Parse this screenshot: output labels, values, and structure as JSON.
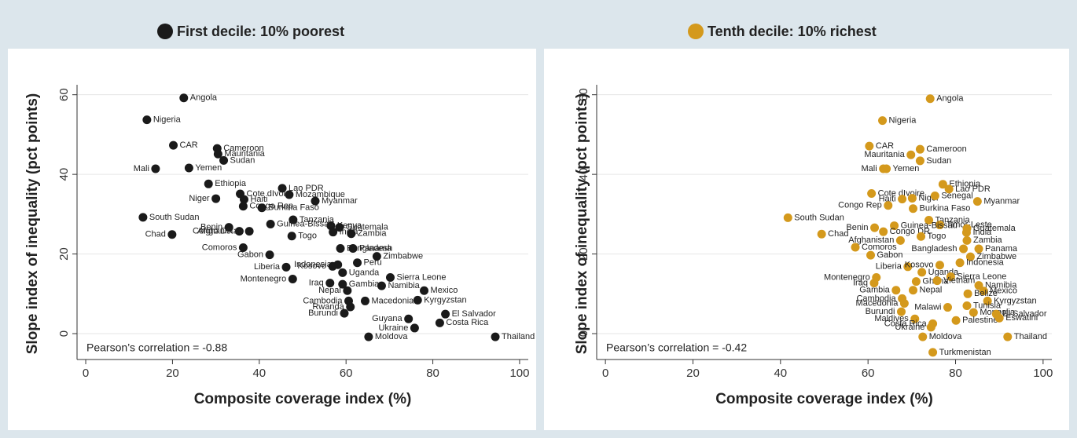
{
  "chart_data": [
    {
      "type": "scatter",
      "x_label": "Composite coverage index (%)",
      "y_label": "Slope index of inequality (pct points)",
      "annotation": "Pearson’s correlation = -0.88",
      "xlim": [
        -2,
        102
      ],
      "ylim": [
        -6.5,
        62.5
      ],
      "xticks": [
        0,
        20,
        40,
        60,
        80,
        100
      ],
      "yticks": [
        0,
        20,
        40,
        60
      ],
      "grid": true,
      "series": [
        {
          "name": "First decile: 10% poorest",
          "color": "#1a1a1a",
          "point_labels": [
            "Angola",
            "Nigeria",
            "CAR",
            "Cameroon",
            "Mauritania",
            "Sudan",
            "Mali",
            "Yemen",
            "Ethiopia",
            "Lao PDR",
            "Cote dIvoire",
            "Mozambique",
            "Niger",
            "Haiti",
            "Myanmar",
            "Congo Rep",
            "Burkina Faso",
            "South Sudan",
            "Tanzania",
            "Kenya",
            "Guatemala",
            "Benin",
            "Guinea-Bissau",
            "India",
            "Zambia",
            "Congo DR",
            "Togo",
            "Chad",
            "Afghanistan",
            "Bangladesh",
            "Comoros",
            "Panama",
            "Gabon",
            "Zimbabwe",
            "Indonesia",
            "Peru",
            "Liberia",
            "Kosovo",
            "Uganda",
            "Montenegro",
            "Sierra Leone",
            "Iraq",
            "Gambia",
            "Namibia",
            "Nepal",
            "Mexico",
            "Cambodia",
            "Kyrgyzstan",
            "Rwanda",
            "Macedonia",
            "Burundi",
            "El Salvador",
            "Guyana",
            "Costa Rica",
            "Ukraine",
            "Moldova",
            "Thailand"
          ],
          "x": [
            22.6,
            14.1,
            20.2,
            30.3,
            30.5,
            31.8,
            16.1,
            23.8,
            28.3,
            45.3,
            35.6,
            46.9,
            30.0,
            36.5,
            52.9,
            36.3,
            40.6,
            13.2,
            47.8,
            56.5,
            58.5,
            33.0,
            42.6,
            57.0,
            61.2,
            35.4,
            47.5,
            19.9,
            37.7,
            58.7,
            36.3,
            61.6,
            42.4,
            67.1,
            58.1,
            62.6,
            46.2,
            56.9,
            59.2,
            47.7,
            70.2,
            56.3,
            59.2,
            68.2,
            60.3,
            78.0,
            60.6,
            76.5,
            61.0,
            64.4,
            59.6,
            82.9,
            74.4,
            81.6,
            75.8,
            65.2,
            94.4
          ],
          "values": [
            59.2,
            53.7,
            47.3,
            46.5,
            45.1,
            43.5,
            41.4,
            41.6,
            37.6,
            36.5,
            35.1,
            34.9,
            33.9,
            33.7,
            33.3,
            32.0,
            31.6,
            29.2,
            28.6,
            27.1,
            26.7,
            26.7,
            27.5,
            25.5,
            25.1,
            25.7,
            24.5,
            24.9,
            25.7,
            21.4,
            21.6,
            21.4,
            19.8,
            19.4,
            17.3,
            17.8,
            16.7,
            16.9,
            15.3,
            13.7,
            14.1,
            12.7,
            12.4,
            12.0,
            10.8,
            10.8,
            8.2,
            8.4,
            6.7,
            8.2,
            5.1,
            4.9,
            3.7,
            2.7,
            1.4,
            -0.8,
            -0.8
          ]
        }
      ]
    },
    {
      "type": "scatter",
      "x_label": "Composite coverage index (%)",
      "y_label": "Slope index of inequality (pct points)",
      "annotation": "Pearson’s correlation = -0.42",
      "xlim": [
        -2,
        102
      ],
      "ylim": [
        -6.5,
        62.5
      ],
      "xticks": [
        0,
        20,
        40,
        60,
        80,
        100
      ],
      "yticks": [
        0,
        20,
        40,
        60
      ],
      "grid": true,
      "series": [
        {
          "name": "Tenth decile: 10% richest",
          "color": "#d4991c",
          "point_labels": [
            "Angola",
            "Nigeria",
            "CAR",
            "Cameroon",
            "Mauritania",
            "Sudan",
            "Mali",
            "Yemen",
            "Ethiopia",
            "Lao PDR",
            "Cote dIvoire",
            "Haiti",
            "Niger",
            "Senegal",
            "Myanmar",
            "Burkina Faso",
            "Congo Rep",
            "South Sudan",
            "Tanzania",
            "Timor-Leste",
            "Guatemala",
            "India",
            "Benin",
            "Guinea-Bissau",
            "Congo DR",
            "Chad",
            "Togo",
            "Afghanistan",
            "Zambia",
            "Comoros",
            "Bangladesh",
            "Panama",
            "Gabon",
            "Zimbabwe",
            "Indonesia",
            "Liberia",
            "Kosovo",
            "Uganda",
            "Montenegro",
            "Sierra Leone",
            "Iraq",
            "Ghana",
            "Vietnam",
            "Namibia",
            "Gambia",
            "Nepal",
            "Mexico",
            "Belize",
            "Cambodia",
            "Kyrgyzstan",
            "Macedonia",
            "Tunisia",
            "Malawi",
            "Burundi",
            "Mongolia",
            "El Salvador",
            "Maldives",
            "Palestine",
            "Eswatini",
            "Costa Rica",
            "Ukraine",
            "Moldova",
            "Thailand",
            "Turkmenistan"
          ],
          "x": [
            74.2,
            63.3,
            60.3,
            71.9,
            69.8,
            71.9,
            63.5,
            64.2,
            77.1,
            78.5,
            60.8,
            67.8,
            70.1,
            75.3,
            85.0,
            70.3,
            64.6,
            41.7,
            73.9,
            76.4,
            82.6,
            82.5,
            61.5,
            66.0,
            63.5,
            49.4,
            72.1,
            67.4,
            82.6,
            57.1,
            81.8,
            85.3,
            60.6,
            83.4,
            81.0,
            69.1,
            76.4,
            72.3,
            61.9,
            78.9,
            61.4,
            71.0,
            75.8,
            85.3,
            66.4,
            70.3,
            86.4,
            82.8,
            67.8,
            87.3,
            68.3,
            82.6,
            78.2,
            67.6,
            84.1,
            89.3,
            70.7,
            80.1,
            90.0,
            74.8,
            74.4,
            72.5,
            91.9,
            74.8
          ],
          "values": [
            59.0,
            53.5,
            47.1,
            46.3,
            44.9,
            43.4,
            41.4,
            41.4,
            37.5,
            36.3,
            35.2,
            33.8,
            34.0,
            34.6,
            33.2,
            31.4,
            32.2,
            29.1,
            28.5,
            27.3,
            26.4,
            25.4,
            26.6,
            27.1,
            25.6,
            25.0,
            24.4,
            23.4,
            23.4,
            21.7,
            21.3,
            21.3,
            19.7,
            19.3,
            17.8,
            16.8,
            17.2,
            15.4,
            14.1,
            14.3,
            12.7,
            13.1,
            13.3,
            12.1,
            10.9,
            10.9,
            10.7,
            10.0,
            8.8,
            8.2,
            7.6,
            7.0,
            6.6,
            5.5,
            5.3,
            4.9,
            3.7,
            3.3,
            3.9,
            2.5,
            1.6,
            -0.8,
            -0.8,
            -4.7
          ]
        }
      ]
    }
  ]
}
